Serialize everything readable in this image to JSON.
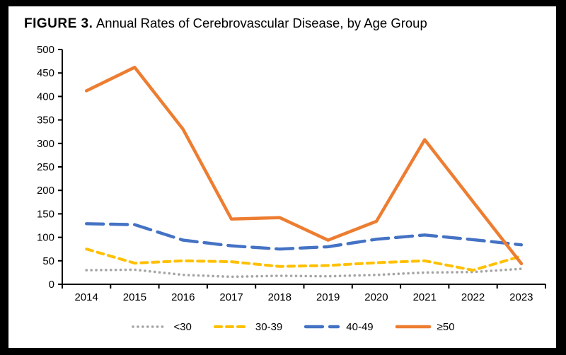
{
  "figure": {
    "label": "FIGURE 3.",
    "title": "Annual Rates of Cerebrovascular Disease, by Age Group"
  },
  "chart_data": {
    "type": "line",
    "title": "FIGURE 3. Annual Rates of Cerebrovascular Disease, by Age Group",
    "x": [
      "2014",
      "2015",
      "2016",
      "2017",
      "2018",
      "2019",
      "2020",
      "2021",
      "2022",
      "2023"
    ],
    "series": [
      {
        "name": "<30",
        "color": "#A5A5A5",
        "line_style": "dotted",
        "values": [
          30,
          31,
          20,
          16,
          18,
          17,
          20,
          25,
          26,
          33
        ]
      },
      {
        "name": "30-39",
        "color": "#FFC000",
        "line_style": "dashed",
        "values": [
          75,
          45,
          50,
          48,
          38,
          40,
          46,
          50,
          30,
          60
        ]
      },
      {
        "name": "40-49",
        "color": "#4472C4",
        "line_style": "long-dash",
        "values": [
          129,
          127,
          94,
          82,
          75,
          80,
          96,
          105,
          95,
          84
        ]
      },
      {
        "name": "≥50",
        "color": "#ED7D31",
        "line_style": "solid",
        "values": [
          412,
          462,
          330,
          139,
          142,
          94,
          134,
          308,
          176,
          44
        ]
      }
    ],
    "xlabel": "",
    "ylabel": "",
    "ylim": [
      0,
      500
    ],
    "ytick_step": 50,
    "yticks": [
      0,
      50,
      100,
      150,
      200,
      250,
      300,
      350,
      400,
      450,
      500
    ],
    "grid": false,
    "legend_position": "bottom",
    "axis_color": "#000000"
  }
}
